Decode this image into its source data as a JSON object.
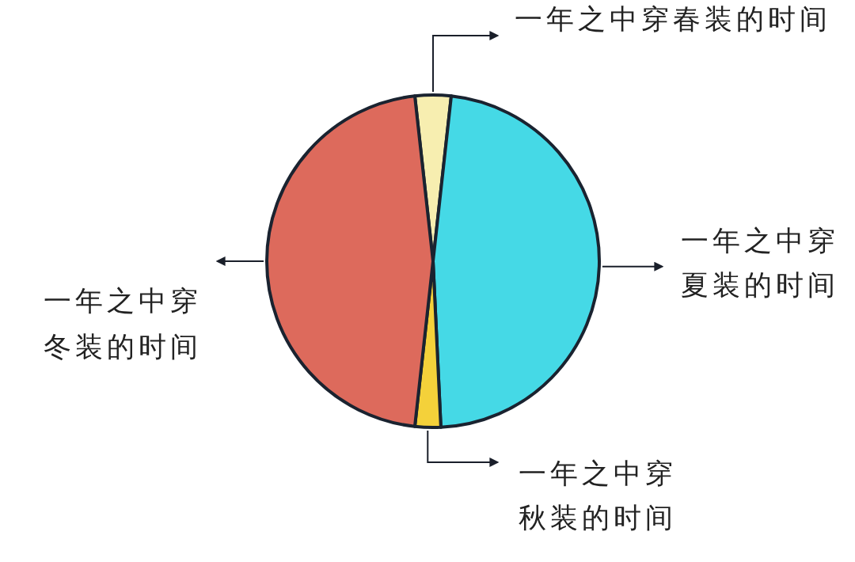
{
  "chart_data": {
    "type": "pie",
    "categories": [
      "一年之中穿春装的时间",
      "一年之中穿夏装的时间",
      "一年之中穿秋装的时间",
      "一年之中穿冬装的时间"
    ],
    "values": [
      3.5,
      47.5,
      2.5,
      46.5
    ],
    "colors": [
      "#f7eeb0",
      "#45d9e6",
      "#f4d13a",
      "#dd6a5c"
    ]
  }
}
